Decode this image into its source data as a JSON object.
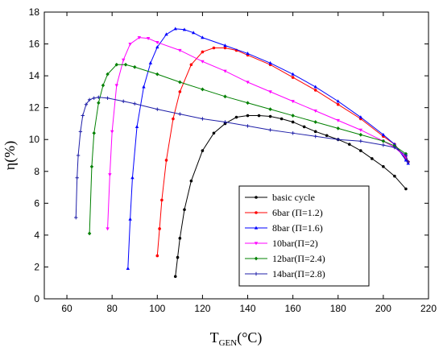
{
  "chart_data": {
    "type": "line",
    "xlabel_main": "T",
    "xlabel_sub": "GEN",
    "xlabel_unit": "(°C)",
    "ylabel": "η(%)",
    "xlim": [
      50,
      220
    ],
    "ylim": [
      0,
      18
    ],
    "x_ticks": [
      60,
      80,
      100,
      120,
      140,
      160,
      180,
      200,
      220
    ],
    "y_ticks": [
      0,
      2,
      4,
      6,
      8,
      10,
      12,
      14,
      16,
      18
    ],
    "grid": false,
    "legend_position": "bottom-right",
    "series": [
      {
        "name": "basic cycle",
        "color": "#000000",
        "marker": "circle",
        "x": [
          108,
          109,
          110,
          112,
          115,
          120,
          125,
          130,
          135,
          140,
          145,
          150,
          155,
          160,
          165,
          170,
          175,
          180,
          185,
          190,
          195,
          200,
          205,
          210
        ],
        "y": [
          1.4,
          2.6,
          3.8,
          5.6,
          7.4,
          9.3,
          10.4,
          11.0,
          11.4,
          11.5,
          11.5,
          11.45,
          11.3,
          11.1,
          10.8,
          10.5,
          10.25,
          10.0,
          9.7,
          9.3,
          8.8,
          8.3,
          7.7,
          6.9
        ]
      },
      {
        "name": "6bar  (Π=1.2)",
        "color": "#ff0000",
        "marker": "circle",
        "x": [
          100,
          101,
          102,
          104,
          107,
          110,
          115,
          120,
          125,
          130,
          135,
          140,
          150,
          160,
          170,
          180,
          190,
          200,
          205,
          210,
          211
        ],
        "y": [
          2.7,
          4.4,
          6.2,
          8.7,
          11.3,
          13.0,
          14.7,
          15.5,
          15.75,
          15.75,
          15.6,
          15.3,
          14.7,
          13.9,
          13.1,
          12.2,
          11.3,
          10.2,
          9.7,
          8.8,
          8.6
        ]
      },
      {
        "name": "8bar  (Π=1.6)",
        "color": "#0000ff",
        "marker": "triangle",
        "x": [
          87,
          88,
          89,
          91,
          94,
          97,
          100,
          104,
          108,
          112,
          116,
          120,
          130,
          140,
          150,
          160,
          170,
          180,
          190,
          200,
          205,
          210,
          211
        ],
        "y": [
          1.9,
          5.0,
          7.6,
          10.8,
          13.3,
          14.8,
          15.8,
          16.6,
          16.95,
          16.9,
          16.7,
          16.4,
          15.9,
          15.4,
          14.8,
          14.1,
          13.3,
          12.4,
          11.4,
          10.3,
          9.7,
          8.7,
          8.5
        ]
      },
      {
        "name": "10bar(Π=2)",
        "color": "#ff00ff",
        "marker": "triangle-down",
        "x": [
          78,
          79,
          80,
          82,
          85,
          88,
          92,
          96,
          100,
          110,
          120,
          130,
          140,
          150,
          160,
          170,
          180,
          190,
          200,
          205,
          210
        ],
        "y": [
          4.4,
          7.8,
          10.5,
          13.4,
          15.0,
          16.0,
          16.4,
          16.35,
          16.1,
          15.6,
          14.9,
          14.3,
          13.6,
          13.0,
          12.4,
          11.8,
          11.2,
          10.6,
          9.9,
          9.5,
          8.9
        ]
      },
      {
        "name": "12bar(Π=2.4)",
        "color": "#008000",
        "marker": "diamond",
        "x": [
          70,
          71,
          72,
          74,
          76,
          78,
          82,
          86,
          90,
          100,
          110,
          120,
          130,
          140,
          150,
          160,
          170,
          180,
          190,
          200,
          205,
          210
        ],
        "y": [
          4.1,
          8.3,
          10.4,
          12.3,
          13.4,
          14.1,
          14.7,
          14.7,
          14.55,
          14.1,
          13.6,
          13.15,
          12.7,
          12.3,
          11.9,
          11.5,
          11.1,
          10.7,
          10.3,
          9.9,
          9.6,
          9.1
        ]
      },
      {
        "name": "14bar(Π=2.8)",
        "color": "#1f1fa8",
        "marker": "plus",
        "x": [
          64,
          64.5,
          65,
          66,
          67,
          68.5,
          70,
          72,
          74,
          78,
          85,
          90,
          100,
          110,
          120,
          130,
          140,
          150,
          160,
          170,
          180,
          190,
          200,
          205,
          210,
          211
        ],
        "y": [
          5.1,
          7.6,
          9.0,
          10.5,
          11.5,
          12.2,
          12.5,
          12.6,
          12.65,
          12.6,
          12.4,
          12.25,
          11.9,
          11.6,
          11.3,
          11.1,
          10.85,
          10.6,
          10.4,
          10.2,
          10.0,
          9.9,
          9.65,
          9.5,
          9.0,
          8.6
        ]
      }
    ]
  }
}
